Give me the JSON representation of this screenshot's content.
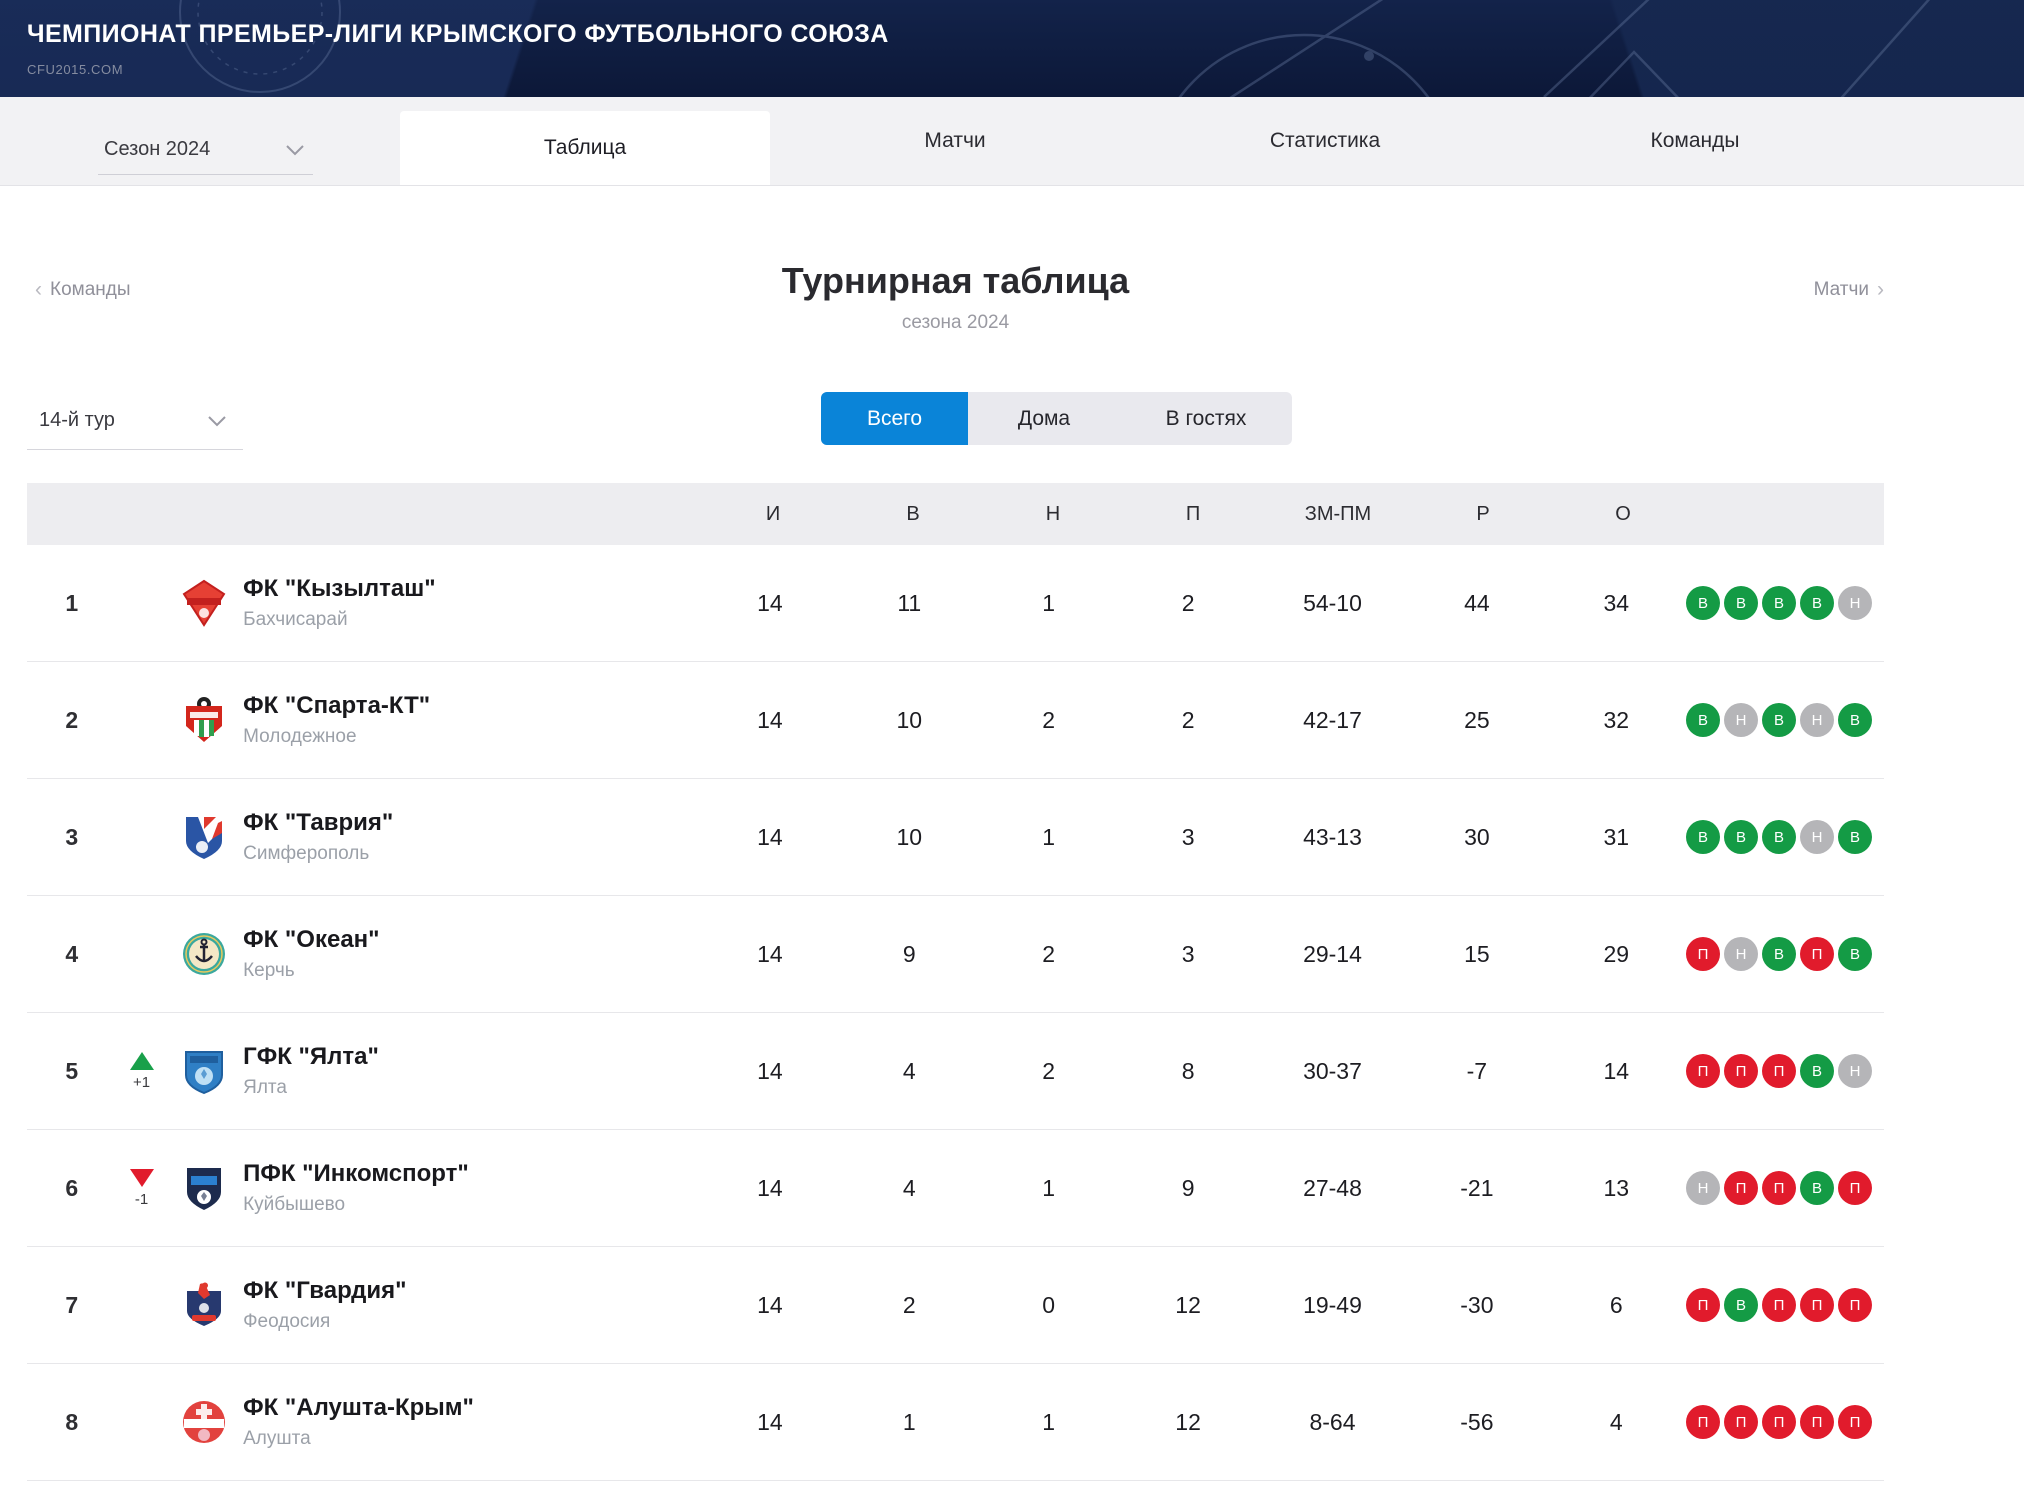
{
  "header": {
    "title": "ЧЕМПИОНАТ ПРЕМЬЕР-ЛИГИ КРЫМСКОГО ФУТБОЛЬНОГО СОЮЗА",
    "site": "CFU2015.COM"
  },
  "nav": {
    "season_selector": {
      "value": "Сезон 2024"
    },
    "tabs": [
      {
        "label": "Таблица",
        "active": true
      },
      {
        "label": "Матчи",
        "active": false
      },
      {
        "label": "Статистика",
        "active": false
      },
      {
        "label": "Команды",
        "active": false
      }
    ]
  },
  "page": {
    "breadcrumb_left": "Команды",
    "breadcrumb_right": "Матчи",
    "title": "Турнирная таблица",
    "subtitle": "сезона 2024",
    "round_selector": {
      "value": "14-й тур"
    },
    "scope_toggle": {
      "options": [
        "Всего",
        "Дома",
        "В гостях"
      ],
      "active": "Всего"
    }
  },
  "table": {
    "columns": [
      "И",
      "В",
      "Н",
      "П",
      "ЗМ-ПМ",
      "Р",
      "О"
    ],
    "rows": [
      {
        "pos": "1",
        "move": null,
        "team": "ФК \"Кызылташ\"",
        "city": "Бахчисарай",
        "stats": [
          "14",
          "11",
          "1",
          "2",
          "54-10",
          "44",
          "34"
        ],
        "form": [
          "В",
          "В",
          "В",
          "В",
          "Н"
        ],
        "logo": {
          "shape": "diamond",
          "colors": [
            "#e64034",
            "#c3201e",
            "#ffffff"
          ]
        }
      },
      {
        "pos": "2",
        "move": null,
        "team": "ФК \"Спарта-КТ\"",
        "city": "Молодежное",
        "stats": [
          "14",
          "10",
          "2",
          "2",
          "42-17",
          "25",
          "32"
        ],
        "form": [
          "В",
          "Н",
          "В",
          "Н",
          "В"
        ],
        "logo": {
          "shape": "shield-stripes",
          "colors": [
            "#d3261c",
            "#2f9e4e",
            "#ffffff",
            "#222222"
          ]
        }
      },
      {
        "pos": "3",
        "move": null,
        "team": "ФК \"Таврия\"",
        "city": "Симферополь",
        "stats": [
          "14",
          "10",
          "1",
          "3",
          "43-13",
          "30",
          "31"
        ],
        "form": [
          "В",
          "В",
          "В",
          "Н",
          "В"
        ],
        "logo": {
          "shape": "shield-diagonal",
          "colors": [
            "#2a55a5",
            "#e0392e",
            "#ffffff"
          ]
        }
      },
      {
        "pos": "4",
        "move": null,
        "team": "ФК \"Океан\"",
        "city": "Керчь",
        "stats": [
          "14",
          "9",
          "2",
          "3",
          "29-14",
          "15",
          "29"
        ],
        "form": [
          "П",
          "Н",
          "В",
          "П",
          "В"
        ],
        "logo": {
          "shape": "circle-anchor",
          "colors": [
            "#3aa89e",
            "#f4e7c6",
            "#222233",
            "#e7c95e"
          ]
        }
      },
      {
        "pos": "5",
        "move": {
          "dir": "up",
          "delta": "+1"
        },
        "team": "ГФК \"Ялта\"",
        "city": "Ялта",
        "stats": [
          "14",
          "4",
          "2",
          "8",
          "30-37",
          "-7",
          "14"
        ],
        "form": [
          "П",
          "П",
          "П",
          "В",
          "Н"
        ],
        "logo": {
          "shape": "shield-ball",
          "colors": [
            "#2f7fc5",
            "#1f5f9e",
            "#bfe0f5"
          ]
        }
      },
      {
        "pos": "6",
        "move": {
          "dir": "down",
          "delta": "-1"
        },
        "team": "ПФК \"Инкомспорт\"",
        "city": "Куйбышево",
        "stats": [
          "14",
          "4",
          "1",
          "9",
          "27-48",
          "-21",
          "13"
        ],
        "form": [
          "Н",
          "П",
          "П",
          "В",
          "П"
        ],
        "logo": {
          "shape": "shield-dark",
          "colors": [
            "#1d2b4d",
            "#2b80cf",
            "#ffffff"
          ]
        }
      },
      {
        "pos": "7",
        "move": null,
        "team": "ФК \"Гвардия\"",
        "city": "Феодосия",
        "stats": [
          "14",
          "2",
          "0",
          "12",
          "19-49",
          "-30",
          "6"
        ],
        "form": [
          "П",
          "В",
          "П",
          "П",
          "П"
        ],
        "logo": {
          "shape": "crest-player",
          "colors": [
            "#27396f",
            "#e0392e",
            "#ffffff"
          ]
        }
      },
      {
        "pos": "8",
        "move": null,
        "team": "ФК \"Алушта-Крым\"",
        "city": "Алушта",
        "stats": [
          "14",
          "1",
          "1",
          "12",
          "8-64",
          "-56",
          "4"
        ],
        "form": [
          "П",
          "П",
          "П",
          "П",
          "П"
        ],
        "logo": {
          "shape": "circle-band",
          "colors": [
            "#e2423e",
            "#f2b8c2",
            "#ffffff"
          ]
        }
      }
    ]
  },
  "colors": {
    "accent_blue": "#0a84d8",
    "win_green": "#149b45",
    "loss_red": "#e11b2c",
    "draw_gray": "#b5b5b8",
    "header_navy": "#0e1c3f"
  }
}
